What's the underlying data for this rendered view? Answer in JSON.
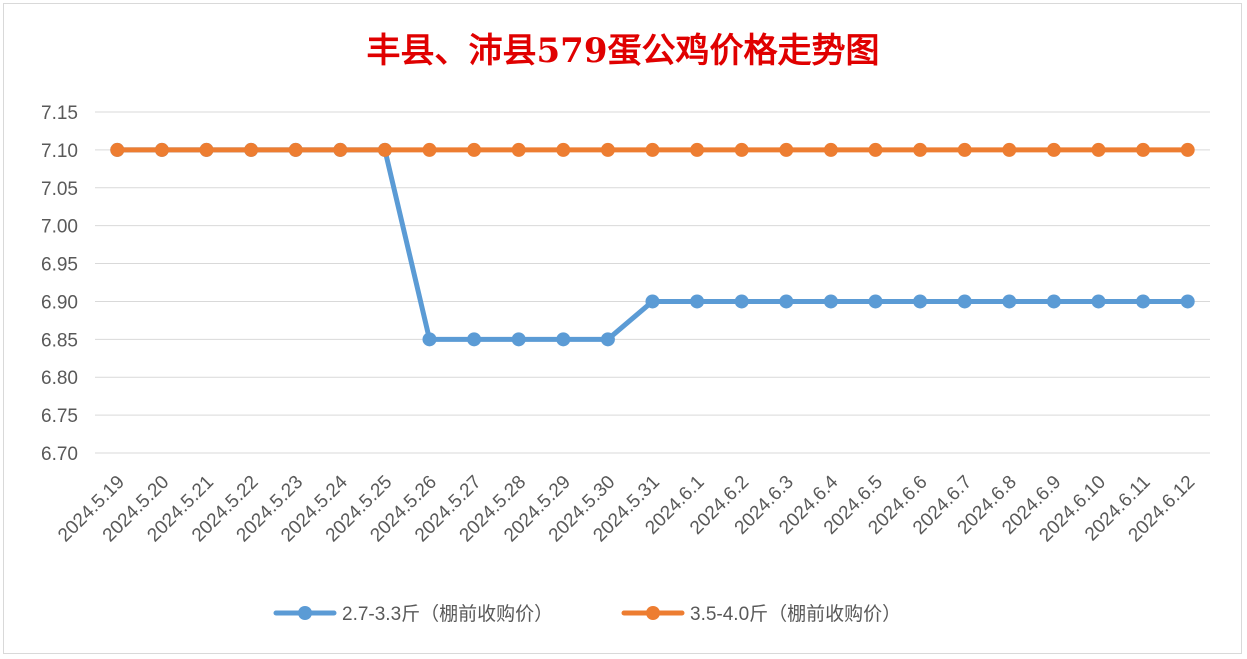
{
  "chart_data": {
    "type": "line",
    "title": "丰县、沛县579蛋公鸡价格走势图",
    "xlabel": "",
    "ylabel": "",
    "categories": [
      "2024.5.19",
      "2024.5.20",
      "2024.5.21",
      "2024.5.22",
      "2024.5.23",
      "2024.5.24",
      "2024.5.25",
      "2024.5.26",
      "2024.5.27",
      "2024.5.28",
      "2024.5.29",
      "2024.5.30",
      "2024.5.31",
      "2024.6.1",
      "2024.6.2",
      "2024.6.3",
      "2024.6.4",
      "2024.6.5",
      "2024.6.6",
      "2024.6.7",
      "2024.6.8",
      "2024.6.9",
      "2024.6.10",
      "2024.6.11",
      "2024.6.12"
    ],
    "ylim": [
      6.7,
      7.15
    ],
    "yticks": [
      "6.70",
      "6.75",
      "6.80",
      "6.85",
      "6.90",
      "6.95",
      "7.00",
      "7.05",
      "7.10",
      "7.15"
    ],
    "grid": true,
    "legend_position": "bottom",
    "series": [
      {
        "name": "2.7-3.3斤（棚前收购价）",
        "color": "#5B9BD5",
        "values": [
          7.1,
          7.1,
          7.1,
          7.1,
          7.1,
          7.1,
          7.1,
          6.85,
          6.85,
          6.85,
          6.85,
          6.85,
          6.9,
          6.9,
          6.9,
          6.9,
          6.9,
          6.9,
          6.9,
          6.9,
          6.9,
          6.9,
          6.9,
          6.9,
          6.9
        ]
      },
      {
        "name": "3.5-4.0斤（棚前收购价）",
        "color": "#ED7D31",
        "values": [
          7.1,
          7.1,
          7.1,
          7.1,
          7.1,
          7.1,
          7.1,
          7.1,
          7.1,
          7.1,
          7.1,
          7.1,
          7.1,
          7.1,
          7.1,
          7.1,
          7.1,
          7.1,
          7.1,
          7.1,
          7.1,
          7.1,
          7.1,
          7.1,
          7.1
        ]
      }
    ],
    "title_color": "#E00000"
  }
}
